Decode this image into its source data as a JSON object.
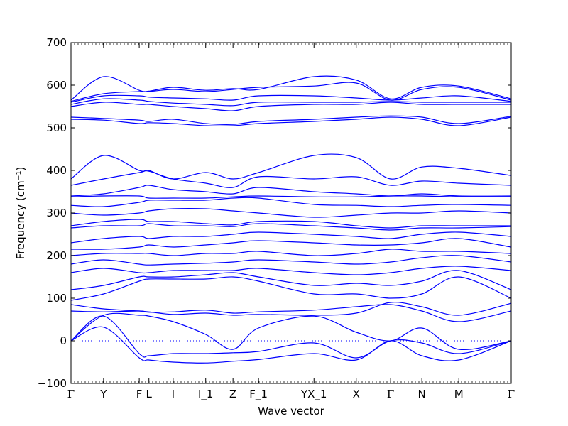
{
  "chart_data": {
    "type": "line",
    "title": "",
    "xlabel": "Wave vector",
    "ylabel": "Frequency (cm⁻¹)",
    "ylim": [
      -100,
      700
    ],
    "yticks": [
      -100,
      0,
      100,
      200,
      300,
      400,
      500,
      600,
      700
    ],
    "xlim": [
      0,
      1
    ],
    "high_symmetry_points": [
      {
        "label": "Γ",
        "x": 0.0
      },
      {
        "label": "Y",
        "x": 0.074
      },
      {
        "label": "F",
        "x": 0.155
      },
      {
        "label": "L",
        "x": 0.177
      },
      {
        "label": "I",
        "x": 0.232
      },
      {
        "label": "I_1",
        "x": 0.306
      },
      {
        "label": "Z",
        "x": 0.368
      },
      {
        "label": "F_1",
        "x": 0.426
      },
      {
        "label": "YX_1",
        "x": 0.552
      },
      {
        "label": "X",
        "x": 0.648
      },
      {
        "label": "Γ",
        "x": 0.726
      },
      {
        "label": "N",
        "x": 0.797
      },
      {
        "label": "M",
        "x": 0.881
      },
      {
        "label": "Γ",
        "x": 1.0
      }
    ],
    "zero_line": 0,
    "line_color": "#0000ff",
    "series": [
      {
        "x": [
          0,
          0.074,
          0.155,
          0.177,
          0.232,
          0.306,
          0.368,
          0.426,
          0.552,
          0.648,
          0.726,
          0.797,
          0.881,
          1
        ],
        "y": [
          0,
          32,
          -40,
          -45,
          -50,
          -52,
          -48,
          -44,
          -30,
          -45,
          0,
          -35,
          -45,
          0
        ]
      },
      {
        "x": [
          0,
          0.074,
          0.155,
          0.177,
          0.232,
          0.306,
          0.368,
          0.426,
          0.552,
          0.648,
          0.726,
          0.797,
          0.881,
          1
        ],
        "y": [
          0,
          58,
          -30,
          -35,
          -30,
          -30,
          -28,
          -25,
          -5,
          -40,
          0,
          -5,
          -30,
          0
        ]
      },
      {
        "x": [
          0,
          0.074,
          0.155,
          0.177,
          0.232,
          0.306,
          0.368,
          0.426,
          0.552,
          0.648,
          0.726,
          0.797,
          0.881,
          1
        ],
        "y": [
          0,
          60,
          60,
          58,
          45,
          15,
          -20,
          30,
          58,
          20,
          0,
          30,
          -20,
          0
        ]
      },
      {
        "x": [
          0,
          0.074,
          0.155,
          0.177,
          0.232,
          0.306,
          0.368,
          0.426,
          0.552,
          0.648,
          0.726,
          0.797,
          0.881,
          1
        ],
        "y": [
          70,
          68,
          70,
          67,
          68,
          72,
          65,
          68,
          72,
          80,
          85,
          70,
          45,
          70
        ]
      },
      {
        "x": [
          0,
          0.074,
          0.155,
          0.177,
          0.232,
          0.306,
          0.368,
          0.426,
          0.552,
          0.648,
          0.726,
          0.797,
          0.881,
          1
        ],
        "y": [
          85,
          75,
          70,
          68,
          62,
          65,
          60,
          62,
          60,
          65,
          90,
          80,
          60,
          88
        ]
      },
      {
        "x": [
          0,
          0.074,
          0.155,
          0.177,
          0.232,
          0.306,
          0.368,
          0.426,
          0.552,
          0.648,
          0.726,
          0.797,
          0.881,
          1
        ],
        "y": [
          95,
          110,
          140,
          145,
          145,
          145,
          150,
          140,
          110,
          110,
          100,
          110,
          150,
          100
        ]
      },
      {
        "x": [
          0,
          0.074,
          0.155,
          0.177,
          0.232,
          0.306,
          0.368,
          0.426,
          0.552,
          0.648,
          0.726,
          0.797,
          0.881,
          1
        ],
        "y": [
          120,
          130,
          150,
          150,
          150,
          155,
          160,
          150,
          130,
          135,
          130,
          140,
          165,
          120
        ]
      },
      {
        "x": [
          0,
          0.074,
          0.155,
          0.177,
          0.232,
          0.306,
          0.368,
          0.426,
          0.552,
          0.648,
          0.726,
          0.797,
          0.881,
          1
        ],
        "y": [
          160,
          170,
          160,
          160,
          165,
          165,
          165,
          170,
          160,
          155,
          160,
          170,
          175,
          165
        ]
      },
      {
        "x": [
          0,
          0.074,
          0.155,
          0.177,
          0.232,
          0.306,
          0.368,
          0.426,
          0.552,
          0.648,
          0.726,
          0.797,
          0.881,
          1
        ],
        "y": [
          180,
          190,
          180,
          178,
          180,
          182,
          185,
          190,
          185,
          180,
          185,
          195,
          200,
          185
        ]
      },
      {
        "x": [
          0,
          0.074,
          0.155,
          0.177,
          0.232,
          0.306,
          0.368,
          0.426,
          0.552,
          0.648,
          0.726,
          0.797,
          0.881,
          1
        ],
        "y": [
          200,
          205,
          205,
          205,
          200,
          205,
          205,
          210,
          200,
          205,
          215,
          210,
          210,
          205
        ]
      },
      {
        "x": [
          0,
          0.074,
          0.155,
          0.177,
          0.232,
          0.306,
          0.368,
          0.426,
          0.552,
          0.648,
          0.726,
          0.797,
          0.881,
          1
        ],
        "y": [
          215,
          215,
          220,
          225,
          220,
          225,
          230,
          235,
          230,
          225,
          225,
          230,
          240,
          220
        ]
      },
      {
        "x": [
          0,
          0.074,
          0.155,
          0.177,
          0.232,
          0.306,
          0.368,
          0.426,
          0.552,
          0.648,
          0.726,
          0.797,
          0.881,
          1
        ],
        "y": [
          230,
          240,
          245,
          240,
          245,
          245,
          250,
          255,
          250,
          245,
          240,
          250,
          255,
          245
        ]
      },
      {
        "x": [
          0,
          0.074,
          0.155,
          0.177,
          0.232,
          0.306,
          0.368,
          0.426,
          0.552,
          0.648,
          0.726,
          0.797,
          0.881,
          1
        ],
        "y": [
          265,
          270,
          270,
          275,
          270,
          270,
          268,
          275,
          270,
          265,
          260,
          265,
          265,
          268
        ]
      },
      {
        "x": [
          0,
          0.074,
          0.155,
          0.177,
          0.232,
          0.306,
          0.368,
          0.426,
          0.552,
          0.648,
          0.726,
          0.797,
          0.881,
          1
        ],
        "y": [
          270,
          280,
          285,
          280,
          280,
          275,
          272,
          280,
          280,
          270,
          265,
          270,
          270,
          270
        ]
      },
      {
        "x": [
          0,
          0.074,
          0.155,
          0.177,
          0.232,
          0.306,
          0.368,
          0.426,
          0.552,
          0.648,
          0.726,
          0.797,
          0.881,
          1
        ],
        "y": [
          300,
          295,
          300,
          305,
          310,
          310,
          305,
          300,
          290,
          295,
          300,
          300,
          305,
          300
        ]
      },
      {
        "x": [
          0,
          0.074,
          0.155,
          0.177,
          0.232,
          0.306,
          0.368,
          0.426,
          0.552,
          0.648,
          0.726,
          0.797,
          0.881,
          1
        ],
        "y": [
          318,
          315,
          325,
          330,
          330,
          330,
          335,
          335,
          320,
          318,
          315,
          318,
          320,
          318
        ]
      },
      {
        "x": [
          0,
          0.074,
          0.155,
          0.177,
          0.232,
          0.306,
          0.368,
          0.426,
          0.552,
          0.648,
          0.726,
          0.797,
          0.881,
          1
        ],
        "y": [
          338,
          340,
          340,
          335,
          335,
          335,
          338,
          340,
          338,
          338,
          340,
          340,
          338,
          338
        ]
      },
      {
        "x": [
          0,
          0.074,
          0.155,
          0.177,
          0.232,
          0.306,
          0.368,
          0.426,
          0.552,
          0.648,
          0.726,
          0.797,
          0.881,
          1
        ],
        "y": [
          340,
          345,
          360,
          365,
          355,
          350,
          345,
          360,
          350,
          345,
          340,
          345,
          340,
          340
        ]
      },
      {
        "x": [
          0,
          0.074,
          0.155,
          0.177,
          0.232,
          0.306,
          0.368,
          0.426,
          0.552,
          0.648,
          0.726,
          0.797,
          0.881,
          1
        ],
        "y": [
          365,
          380,
          395,
          398,
          380,
          370,
          360,
          385,
          380,
          385,
          365,
          375,
          370,
          365
        ]
      },
      {
        "x": [
          0,
          0.074,
          0.155,
          0.177,
          0.232,
          0.306,
          0.368,
          0.426,
          0.552,
          0.648,
          0.726,
          0.797,
          0.881,
          1
        ],
        "y": [
          380,
          435,
          400,
          400,
          380,
          395,
          380,
          395,
          435,
          430,
          380,
          408,
          405,
          388
        ]
      },
      {
        "x": [
          0,
          0.074,
          0.155,
          0.177,
          0.232,
          0.306,
          0.368,
          0.426,
          0.552,
          0.648,
          0.726,
          0.797,
          0.881,
          1
        ],
        "y": [
          520,
          518,
          510,
          512,
          510,
          505,
          505,
          510,
          515,
          520,
          525,
          520,
          505,
          525
        ]
      },
      {
        "x": [
          0,
          0.074,
          0.155,
          0.177,
          0.232,
          0.306,
          0.368,
          0.426,
          0.552,
          0.648,
          0.726,
          0.797,
          0.881,
          1
        ],
        "y": [
          525,
          522,
          518,
          515,
          520,
          510,
          508,
          515,
          520,
          525,
          528,
          525,
          510,
          527
        ]
      },
      {
        "x": [
          0,
          0.074,
          0.155,
          0.177,
          0.232,
          0.306,
          0.368,
          0.426,
          0.552,
          0.648,
          0.726,
          0.797,
          0.881,
          1
        ],
        "y": [
          550,
          560,
          555,
          555,
          550,
          545,
          540,
          550,
          555,
          555,
          560,
          555,
          555,
          555
        ]
      },
      {
        "x": [
          0,
          0.074,
          0.155,
          0.177,
          0.232,
          0.306,
          0.368,
          0.426,
          0.552,
          0.648,
          0.726,
          0.797,
          0.881,
          1
        ],
        "y": [
          555,
          568,
          565,
          562,
          558,
          555,
          552,
          560,
          560,
          560,
          562,
          560,
          560,
          560
        ]
      },
      {
        "x": [
          0,
          0.074,
          0.155,
          0.177,
          0.232,
          0.306,
          0.368,
          0.426,
          0.552,
          0.648,
          0.726,
          0.797,
          0.881,
          1
        ],
        "y": [
          560,
          575,
          575,
          572,
          570,
          568,
          565,
          575,
          575,
          570,
          565,
          570,
          575,
          562
        ]
      },
      {
        "x": [
          0,
          0.074,
          0.155,
          0.177,
          0.232,
          0.306,
          0.368,
          0.426,
          0.552,
          0.648,
          0.726,
          0.797,
          0.881,
          1
        ],
        "y": [
          562,
          580,
          585,
          585,
          590,
          585,
          590,
          595,
          598,
          605,
          565,
          590,
          595,
          565
        ]
      },
      {
        "x": [
          0,
          0.074,
          0.155,
          0.177,
          0.232,
          0.306,
          0.368,
          0.426,
          0.552,
          0.648,
          0.726,
          0.797,
          0.881,
          1
        ],
        "y": [
          565,
          620,
          588,
          586,
          595,
          588,
          592,
          590,
          620,
          612,
          568,
          595,
          598,
          568
        ]
      }
    ]
  }
}
